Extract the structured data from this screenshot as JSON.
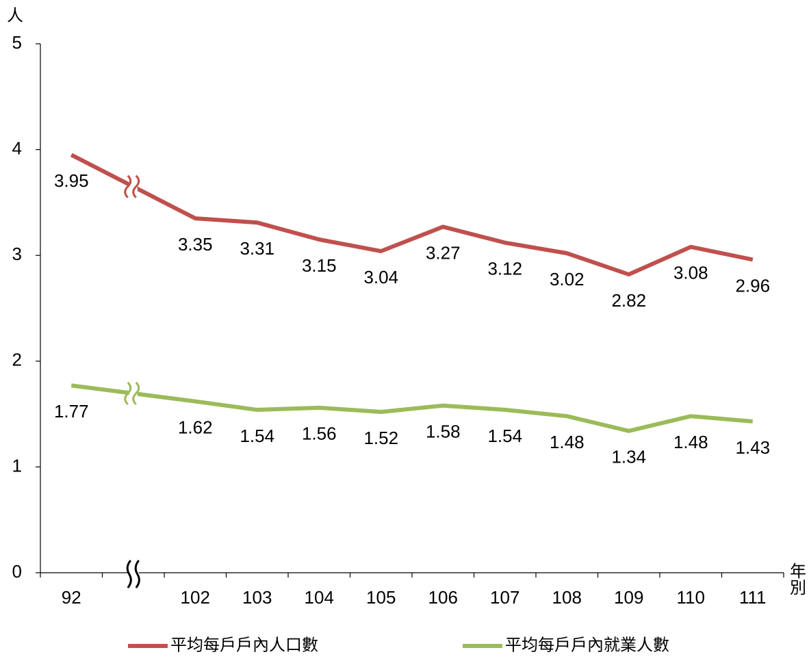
{
  "chart_data": {
    "type": "line",
    "y_label": "人",
    "x_label": "年別",
    "categories": [
      "92",
      "102",
      "103",
      "104",
      "105",
      "106",
      "107",
      "108",
      "109",
      "110",
      "111"
    ],
    "series": [
      {
        "name": "平均每戶戶內人口數",
        "color": "#c0504d",
        "values": [
          3.95,
          3.35,
          3.31,
          3.15,
          3.04,
          3.27,
          3.12,
          3.02,
          2.82,
          3.08,
          2.96
        ]
      },
      {
        "name": "平均每戶戶內就業人數",
        "color": "#9bbb59",
        "values": [
          1.77,
          1.62,
          1.54,
          1.56,
          1.52,
          1.58,
          1.54,
          1.48,
          1.34,
          1.48,
          1.43
        ]
      }
    ],
    "ylim": [
      0,
      5
    ],
    "yticks": [
      0,
      1,
      2,
      3,
      4,
      5
    ]
  }
}
